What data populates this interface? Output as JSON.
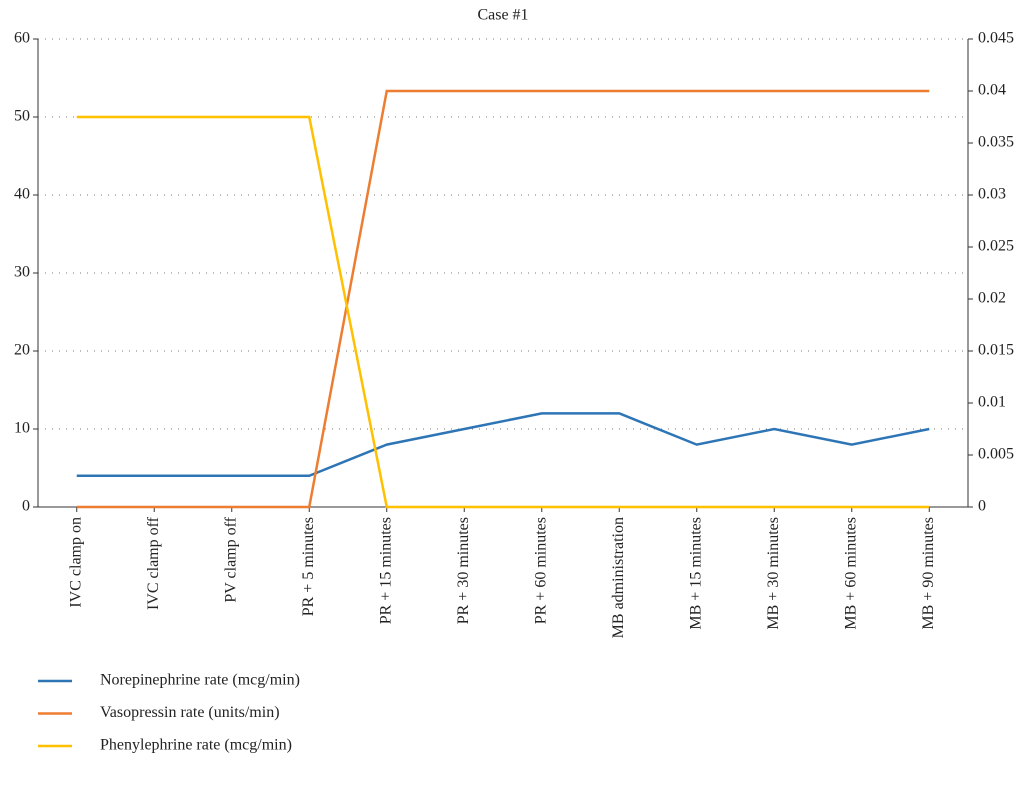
{
  "chart_data": {
    "type": "line",
    "title": "Case #1",
    "categories": [
      "IVC clamp on",
      "IVC clamp off",
      "PV clamp off",
      "PR + 5 minutes",
      "PR + 15 minutes",
      "PR + 30 minutes",
      "PR + 60 minutes",
      "MB administration",
      "MB + 15 minutes",
      "MB + 30 minutes",
      "MB + 60 minutes",
      "MB + 90 minutes"
    ],
    "series": [
      {
        "name": "Norepinephrine rate (mcg/min)",
        "color": "#2e75b6",
        "values": [
          4,
          4,
          4,
          4,
          8,
          10,
          12,
          12,
          8,
          10,
          8,
          10
        ]
      },
      {
        "name": "Vasopressin rate (units/min)",
        "color": "#ed7d31",
        "axis": "y2",
        "values": [
          0,
          0,
          0,
          0,
          0.04,
          0.04,
          0.04,
          0.04,
          0.04,
          0.04,
          0.04,
          0.04
        ]
      },
      {
        "name": "Phenylephrine rate (mcg/min)",
        "color": "#ffc000",
        "values": [
          50,
          50,
          50,
          50,
          0,
          0,
          0,
          0,
          0,
          0,
          0,
          0
        ]
      }
    ],
    "ylim": [
      0,
      60
    ],
    "yticks": [
      0,
      10,
      20,
      30,
      40,
      50,
      60
    ],
    "y2lim": [
      0,
      0.045
    ],
    "y2ticks": [
      0,
      0.005,
      0.01,
      0.015,
      0.02,
      0.025,
      0.03,
      0.035,
      0.04,
      0.045
    ],
    "grid": true
  }
}
